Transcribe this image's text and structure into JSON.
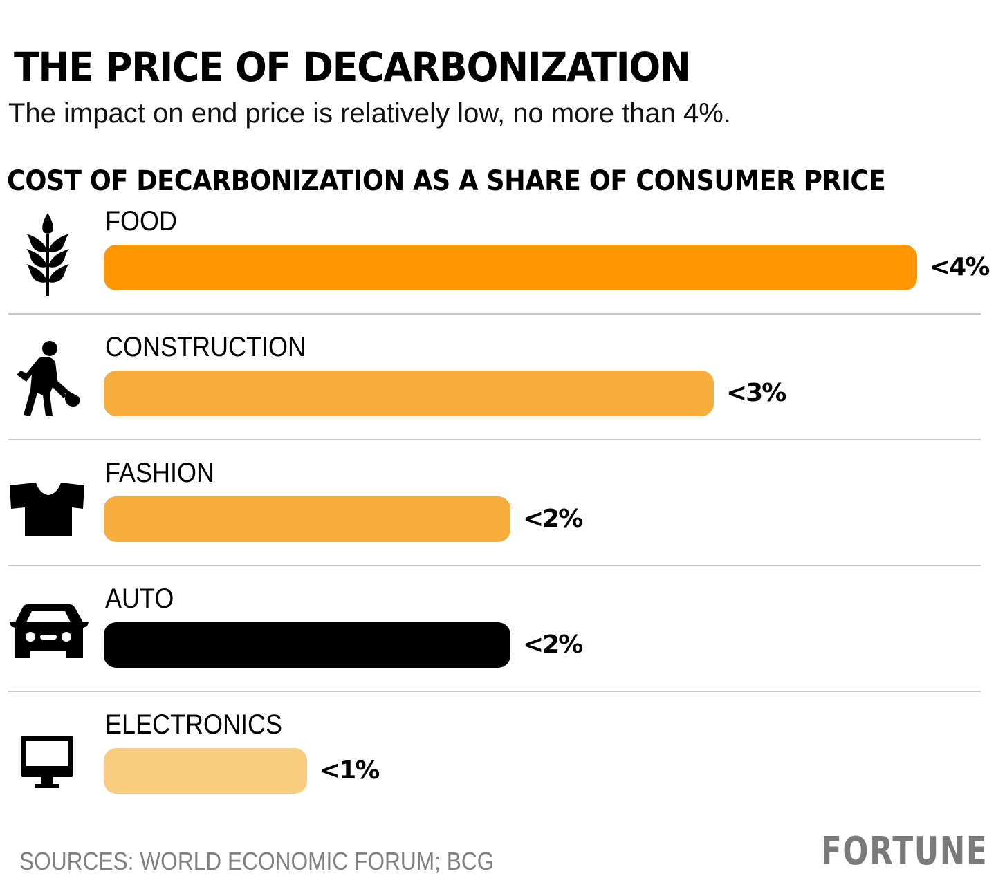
{
  "header": {
    "title": "THE PRICE OF DECARBONIZATION",
    "subtitle": "The impact on end price is relatively low, no more than 4%."
  },
  "chart_data": {
    "type": "bar",
    "orientation": "horizontal",
    "title": "COST OF DECARBONIZATION AS A SHARE OF CONSUMER PRICE",
    "xlabel": "",
    "ylabel": "",
    "unit": "% of consumer price (upper bound)",
    "xlim": [
      0,
      4
    ],
    "grid": false,
    "legend": "none",
    "categories": [
      "FOOD",
      "CONSTRUCTION",
      "FASHION",
      "AUTO",
      "ELECTRONICS"
    ],
    "values": [
      4,
      3,
      2,
      2,
      1
    ],
    "data_labels": [
      "<4%",
      "<3%",
      "<2%",
      "<2%",
      "<1%"
    ],
    "icons": [
      "wheat-icon",
      "construction-worker-icon",
      "t-shirt-icon",
      "car-icon",
      "monitor-icon"
    ],
    "colors": [
      "#ff9500",
      "#f7ad3c",
      "#f7ad3c",
      "#000000",
      "#f9cc80"
    ]
  },
  "footer": {
    "source": "SOURCES: WORLD ECONOMIC FORUM; BCG",
    "logo": "FORTUNE"
  }
}
